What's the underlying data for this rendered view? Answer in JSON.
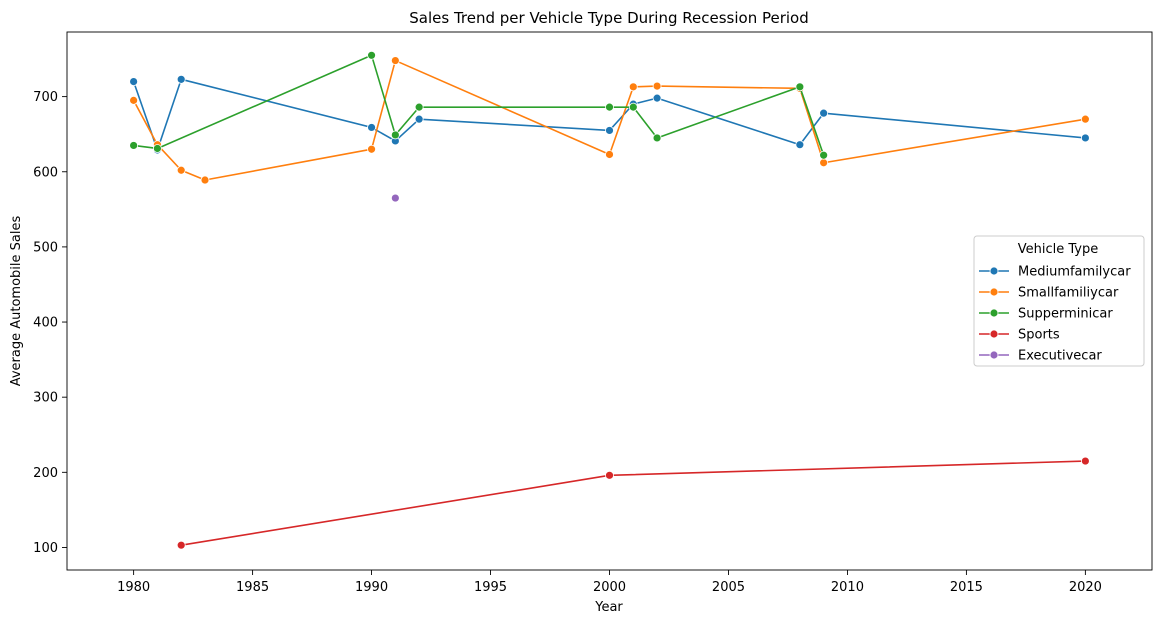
{
  "chart_data": {
    "type": "line",
    "title": "Sales Trend per Vehicle Type During Recession Period",
    "xlabel": "Year",
    "ylabel": "Average Automobile Sales",
    "xlim": [
      1977.2,
      2022.8
    ],
    "ylim": [
      70,
      786
    ],
    "xticks": [
      1980,
      1985,
      1990,
      1995,
      2000,
      2005,
      2010,
      2015,
      2020
    ],
    "yticks": [
      100,
      200,
      300,
      400,
      500,
      600,
      700
    ],
    "grid": false,
    "legend": {
      "title": "Vehicle Type",
      "position": "center-right"
    },
    "series": [
      {
        "name": "Mediumfamilycar",
        "color": "#1f77b4",
        "x": [
          1980,
          1981,
          1982,
          1990,
          1991,
          1992,
          2000,
          2001,
          2002,
          2008,
          2009,
          2020
        ],
        "y": [
          720,
          629,
          723,
          659,
          641,
          670,
          655,
          690,
          698,
          636,
          678,
          645
        ]
      },
      {
        "name": "Smallfamiliycar",
        "color": "#ff7f0e",
        "x": [
          1980,
          1981,
          1982,
          1983,
          1990,
          1991,
          2000,
          2001,
          2002,
          2008,
          2009,
          2020
        ],
        "y": [
          695,
          636,
          602,
          589,
          630,
          748,
          623,
          713,
          714,
          711,
          612,
          670
        ]
      },
      {
        "name": "Supperminicar",
        "color": "#2ca02c",
        "x": [
          1980,
          1981,
          1990,
          1991,
          1992,
          2000,
          2001,
          2002,
          2008,
          2009
        ],
        "y": [
          635,
          631,
          755,
          649,
          686,
          686,
          686,
          645,
          713,
          622
        ]
      },
      {
        "name": "Sports",
        "color": "#d62728",
        "x": [
          1982,
          2000,
          2020
        ],
        "y": [
          103,
          196,
          215
        ]
      },
      {
        "name": "Executivecar",
        "color": "#9467bd",
        "x": [
          1991
        ],
        "y": [
          565
        ]
      }
    ]
  }
}
